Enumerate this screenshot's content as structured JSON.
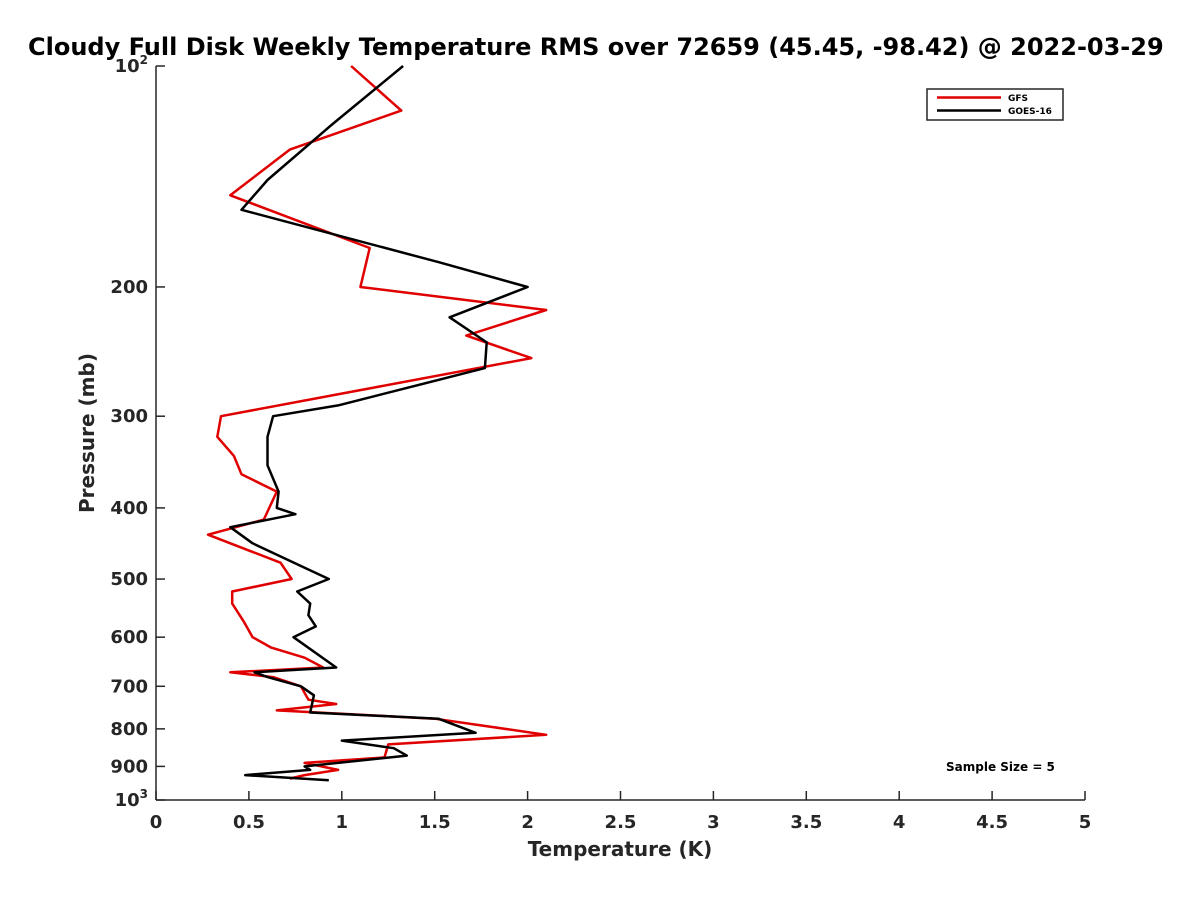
{
  "chart_data": {
    "type": "line",
    "title": "Cloudy Full Disk Weekly Temperature RMS over 72659 (45.45, -98.42) @ 2022-03-29",
    "xlabel": "Temperature (K)",
    "ylabel": "Pressure (mb)",
    "xlim": [
      0,
      5
    ],
    "ylim": [
      100,
      1000
    ],
    "y_scale": "log",
    "y_reversed": true,
    "x_ticks": [
      "0",
      "0.5",
      "1",
      "1.5",
      "2",
      "2.5",
      "3",
      "3.5",
      "4",
      "4.5",
      "5"
    ],
    "x_tick_values": [
      0,
      0.5,
      1,
      1.5,
      2,
      2.5,
      3,
      3.5,
      4,
      4.5,
      5
    ],
    "y_ticks": [
      {
        "value": 100,
        "base": "10",
        "exp": "2"
      },
      {
        "value": 200,
        "label": "200"
      },
      {
        "value": 300,
        "label": "300"
      },
      {
        "value": 400,
        "label": "400"
      },
      {
        "value": 500,
        "label": "500"
      },
      {
        "value": 600,
        "label": "600"
      },
      {
        "value": 700,
        "label": "700"
      },
      {
        "value": 800,
        "label": "800"
      },
      {
        "value": 900,
        "label": "900"
      },
      {
        "value": 1000,
        "base": "10",
        "exp": "3"
      }
    ],
    "grid": false,
    "legend_position": "top-right",
    "annotation": "Sample Size = 5",
    "series": [
      {
        "name": "GFS",
        "color": "#e00000",
        "points": [
          [
            1.05,
            100
          ],
          [
            1.32,
            115
          ],
          [
            0.72,
            130
          ],
          [
            0.4,
            150
          ],
          [
            1.15,
            177
          ],
          [
            1.1,
            200
          ],
          [
            2.1,
            215
          ],
          [
            1.67,
            233
          ],
          [
            2.02,
            250
          ],
          [
            0.35,
            300
          ],
          [
            0.33,
            320
          ],
          [
            0.42,
            340
          ],
          [
            0.46,
            360
          ],
          [
            0.65,
            380
          ],
          [
            0.58,
            415
          ],
          [
            0.28,
            435
          ],
          [
            0.67,
            475
          ],
          [
            0.73,
            500
          ],
          [
            0.41,
            520
          ],
          [
            0.41,
            540
          ],
          [
            0.47,
            570
          ],
          [
            0.52,
            600
          ],
          [
            0.62,
            620
          ],
          [
            0.8,
            640
          ],
          [
            0.9,
            660
          ],
          [
            0.4,
            670
          ],
          [
            0.63,
            680
          ],
          [
            0.78,
            700
          ],
          [
            0.82,
            730
          ],
          [
            0.97,
            740
          ],
          [
            0.65,
            755
          ],
          [
            1.5,
            775
          ],
          [
            2.1,
            815
          ],
          [
            1.25,
            840
          ],
          [
            1.23,
            875
          ],
          [
            0.8,
            890
          ],
          [
            0.98,
            910
          ],
          [
            0.8,
            925
          ],
          [
            0.72,
            935
          ]
        ]
      },
      {
        "name": "GOES-16",
        "color": "#000000",
        "points": [
          [
            1.33,
            100
          ],
          [
            0.95,
            120
          ],
          [
            0.6,
            143
          ],
          [
            0.46,
            157
          ],
          [
            1.52,
            185
          ],
          [
            2.0,
            200
          ],
          [
            1.58,
            220
          ],
          [
            1.78,
            238
          ],
          [
            1.77,
            258
          ],
          [
            0.98,
            290
          ],
          [
            0.63,
            300
          ],
          [
            0.6,
            320
          ],
          [
            0.6,
            350
          ],
          [
            0.66,
            380
          ],
          [
            0.65,
            400
          ],
          [
            0.75,
            408
          ],
          [
            0.4,
            425
          ],
          [
            0.52,
            447
          ],
          [
            0.78,
            480
          ],
          [
            0.93,
            500
          ],
          [
            0.76,
            520
          ],
          [
            0.83,
            540
          ],
          [
            0.82,
            560
          ],
          [
            0.86,
            580
          ],
          [
            0.74,
            600
          ],
          [
            0.97,
            660
          ],
          [
            0.53,
            670
          ],
          [
            0.6,
            680
          ],
          [
            0.78,
            700
          ],
          [
            0.85,
            720
          ],
          [
            0.83,
            760
          ],
          [
            1.52,
            775
          ],
          [
            1.72,
            810
          ],
          [
            1.0,
            830
          ],
          [
            1.28,
            850
          ],
          [
            1.35,
            870
          ],
          [
            0.8,
            900
          ],
          [
            0.83,
            910
          ],
          [
            0.48,
            925
          ],
          [
            0.93,
            940
          ]
        ]
      }
    ]
  }
}
